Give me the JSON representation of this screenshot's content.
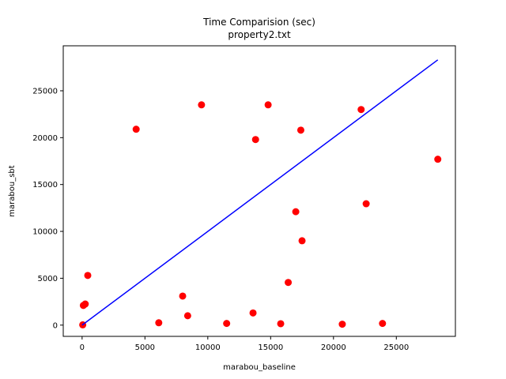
{
  "chart_data": {
    "type": "scatter",
    "title": "Time Comparision (sec)",
    "subtitle": "property2.txt",
    "xlabel": "marabou_baseline",
    "ylabel": "marabou_sbt",
    "xlim": [
      -1500,
      29700
    ],
    "ylim": [
      -1200,
      29800
    ],
    "xticks": [
      0,
      5000,
      10000,
      15000,
      20000,
      25000
    ],
    "yticks": [
      0,
      5000,
      10000,
      15000,
      20000,
      25000
    ],
    "grid": false,
    "series": [
      {
        "kind": "scatter",
        "color": "#ff0000",
        "points": [
          [
            50,
            30
          ],
          [
            100,
            2100
          ],
          [
            250,
            2250
          ],
          [
            450,
            5300
          ],
          [
            4300,
            20900
          ],
          [
            6100,
            250
          ],
          [
            8000,
            3100
          ],
          [
            8400,
            1000
          ],
          [
            9500,
            23500
          ],
          [
            11500,
            180
          ],
          [
            13600,
            1300
          ],
          [
            13800,
            19800
          ],
          [
            14800,
            23500
          ],
          [
            15800,
            150
          ],
          [
            16400,
            4550
          ],
          [
            17000,
            12100
          ],
          [
            17400,
            20800
          ],
          [
            17500,
            9000
          ],
          [
            20700,
            100
          ],
          [
            22200,
            23000
          ],
          [
            22600,
            12950
          ],
          [
            23900,
            180
          ],
          [
            28300,
            17700
          ]
        ]
      },
      {
        "kind": "line",
        "color": "#0000ff",
        "points": [
          [
            0,
            0
          ],
          [
            28300,
            28300
          ]
        ]
      }
    ]
  }
}
